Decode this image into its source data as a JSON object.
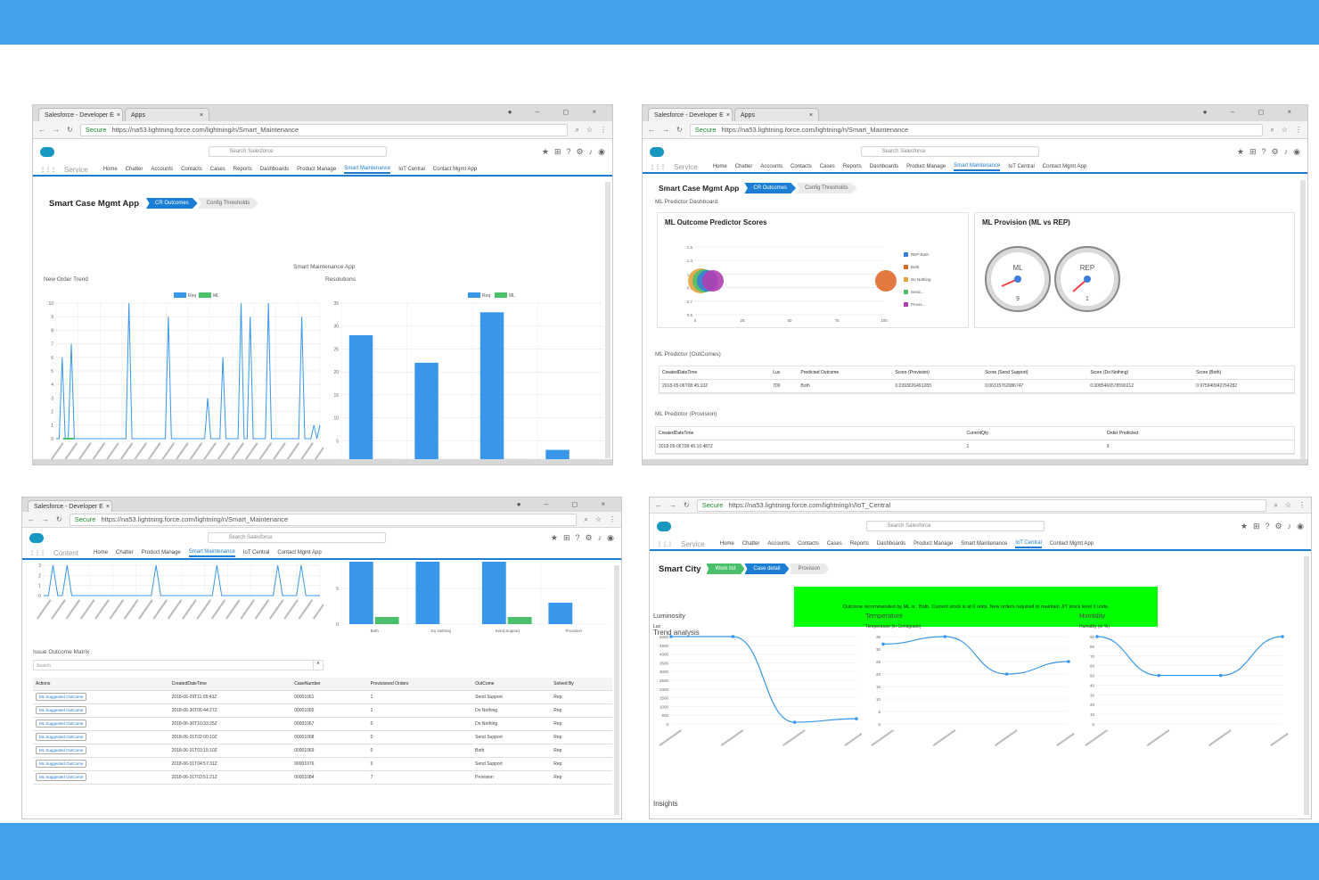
{
  "colors": {
    "band": "#42a1ec",
    "accent": "#1b7dd3",
    "series_blue": "#3897ea",
    "series_green": "#4bc06a",
    "banner_green": "#00ff00"
  },
  "browser": {
    "tab1": "Salesforce - Developer E",
    "tab2": "Apps",
    "secure": "Secure",
    "url_smart": "https://na53.lightning.force.com/lightning/n/Smart_Maintenance",
    "url_iot": "https://na53.lightning.force.com/lightning/n/IoT_Central"
  },
  "sf": {
    "search_scope": "All",
    "search_placeholder": "Search Salesforce",
    "app_service": "Service",
    "app_content": "Content",
    "nav_service": [
      "Home",
      "Chatter",
      "Accounts",
      "Contacts",
      "Cases",
      "Reports",
      "Dashboards",
      "Product Manage",
      "Smart Maintenance",
      "IoT Central",
      "Contact Mgmt App"
    ],
    "nav_content": [
      "Home",
      "Chatter",
      "Product Manage",
      "Smart Maintenance",
      "IoT Central",
      "Contact Mgmt App"
    ]
  },
  "s1": {
    "app_title": "Smart Case Mgmt App",
    "path": [
      "CR Outcomes",
      "Config Thresholds"
    ],
    "section": "Smart Maintenance App",
    "chart_left_title": "New Order Trend",
    "chart_right_title": "Resolutions",
    "legend": [
      "Req",
      "ML"
    ]
  },
  "s2": {
    "app_title": "Smart Case Mgmt App",
    "path": [
      "CR Outcomes",
      "Config Thresholds"
    ],
    "dashboard": "ML Predictor Dashboard",
    "card_left": "ML Outcome Predictor Scores",
    "card_right": "ML Provision (ML vs REP)",
    "gauge_labels": [
      "ML",
      "REP"
    ],
    "gauge_values": [
      "9",
      "1"
    ],
    "bubble_legend": [
      "REP-Both",
      "Both",
      "Do Nothing",
      "Send...",
      "Provis..."
    ],
    "outcomes_title": "ML Predictor (OutComes)",
    "outcomes_headers": [
      "CreatedDateTime",
      "Lux",
      "Predicted Outcome",
      "Score (Provision)",
      "Score (Send Support)",
      "Score (Do Nothing)",
      "Score (Both)"
    ],
    "outcomes_row": [
      "2018-05-06T08:45:10Z",
      "700",
      "Both",
      "0.0393026491283",
      "0.06315762086747",
      "0.0085466578590212",
      "0.975940942764282"
    ],
    "provision_title": "ML Predictor (Provision)",
    "provision_headers": [
      "CreatedDateTime",
      "CurrentQty",
      "Order Predicted"
    ],
    "provision_row": [
      "2018-05-06T08:45:10.487Z",
      "1",
      "9"
    ]
  },
  "s3": {
    "matrix_title": "Issue Outcome Matrix",
    "search_placeholder": "Search",
    "headers": [
      "Actions",
      "CreatedDateTime",
      "CaseNumber",
      "Provisioned Orders",
      "OutCome",
      "Solved By"
    ],
    "action_label": "ML Suggested OutCome",
    "rows": [
      [
        "2018-06-29T11:05:43Z",
        "00001061",
        "1",
        "Send Support",
        "Rep"
      ],
      [
        "2018-06-30T06:44:27Z",
        "00001065",
        "1",
        "Do Nothing",
        "Rep"
      ],
      [
        "2018-06-30T10:33:25Z",
        "00001067",
        "0",
        "Do Nothing",
        "Rep"
      ],
      [
        "2018-06-31T02:00:10Z",
        "00001068",
        "0",
        "Send Support",
        "Rep"
      ],
      [
        "2018-06-31T03:15:10Z",
        "00001069",
        "0",
        "Both",
        "Rep"
      ],
      [
        "2018-06-31T04:57:31Z",
        "00001076",
        "0",
        "Send Support",
        "Rep"
      ],
      [
        "2018-06-31T03:51:21Z",
        "00001084",
        "7",
        "Provision",
        "Rep"
      ]
    ],
    "bar_categories": [
      "Both",
      "Do Nothing",
      "Send Support",
      "Provision"
    ]
  },
  "s4": {
    "app_title": "Smart City",
    "path": [
      "Work list",
      "Case detail",
      "Provision"
    ],
    "banner": "Outcome recommended by ML is : Both. Current stock is at 0 units. New orders required to maintain JIT stock level 0 units.",
    "trend": "Trend analysis",
    "insights": "Insights"
  },
  "chart_data": [
    {
      "type": "line",
      "title": "New Order Trend",
      "series": [
        {
          "name": "Req",
          "values": [
            0,
            0,
            6,
            0,
            0,
            7,
            0,
            0,
            0,
            0,
            0,
            0,
            0,
            0,
            0,
            0,
            0,
            0,
            0,
            0,
            0,
            0,
            0,
            0,
            10,
            0,
            0,
            0,
            0,
            0,
            0,
            0,
            0,
            0,
            0,
            0,
            0,
            9,
            0,
            0,
            0,
            0,
            0,
            0,
            0,
            0,
            0,
            0,
            0,
            0,
            3,
            0,
            0,
            0,
            0,
            6,
            0,
            0,
            0,
            0,
            0,
            10,
            0,
            0,
            9,
            0,
            0,
            0,
            0,
            0,
            10,
            0,
            0,
            0,
            0,
            0,
            0,
            0,
            0,
            0,
            0,
            9,
            0,
            0,
            0,
            1,
            0,
            1
          ]
        },
        {
          "name": "ML",
          "values": [
            0,
            0,
            0,
            0,
            0,
            0,
            0,
            0,
            0,
            0
          ]
        }
      ],
      "ylim": [
        0,
        10
      ]
    },
    {
      "type": "bar",
      "title": "Resolutions",
      "categories": [
        "Both",
        "Do Nothing",
        "Send Support",
        "Provision"
      ],
      "series": [
        {
          "name": "Req",
          "values": [
            28,
            22,
            33,
            3
          ]
        },
        {
          "name": "ML",
          "values": [
            1,
            0,
            1,
            0
          ]
        }
      ],
      "ylim": [
        0,
        35
      ]
    },
    {
      "type": "line",
      "title": "Luminosity",
      "ylabel": "Lux",
      "x": [
        "20180508 10:45:10.318",
        "20180508 10:46:11.318",
        "20180508 10:48:09.318",
        "20180508 10:49:08.318"
      ],
      "values": [
        5000,
        5000,
        100,
        300
      ],
      "ylim": [
        0,
        5000
      ]
    },
    {
      "type": "line",
      "title": "Temperature",
      "ylabel": "Temperature (in Centigrade)",
      "values": [
        32,
        35,
        20,
        25
      ],
      "ylim": [
        0,
        35
      ]
    },
    {
      "type": "line",
      "title": "Humidity",
      "ylabel": "Humidity (in %)",
      "values": [
        90,
        50,
        50,
        90
      ],
      "ylim": [
        0,
        90
      ]
    }
  ]
}
